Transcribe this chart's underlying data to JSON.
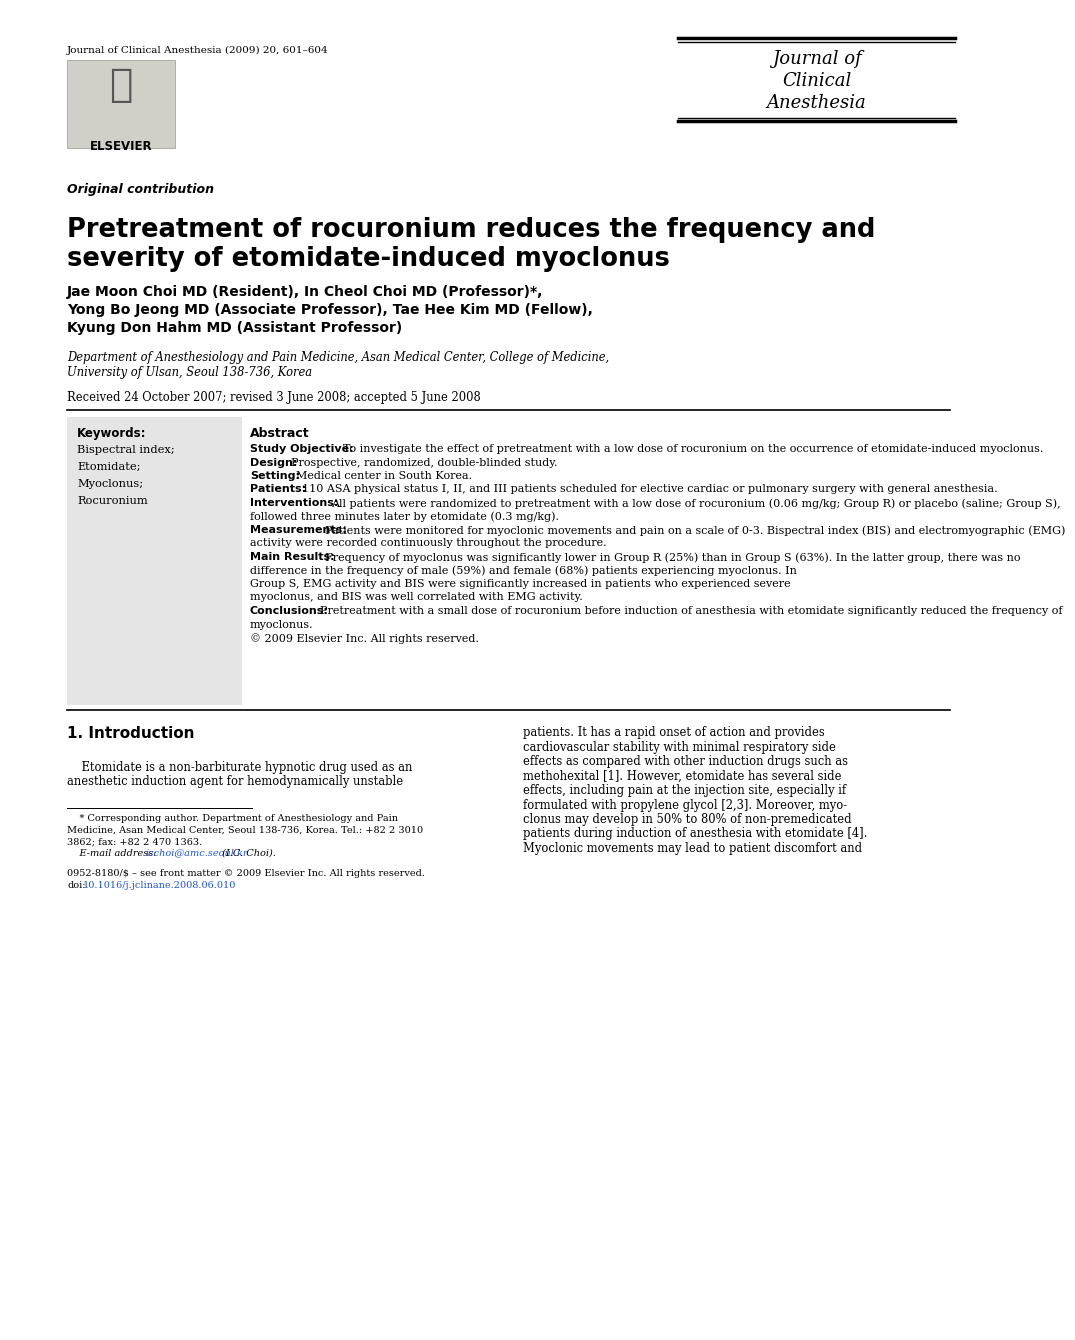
{
  "journal_info": "Journal of Clinical Anesthesia (2009) 20, 601–604",
  "journal_name_lines": [
    "Journal of",
    "Clinical",
    "Anesthesia"
  ],
  "section_label": "Original contribution",
  "title_line1": "Pretreatment of rocuronium reduces the frequency and",
  "title_line2": "severity of etomidate-induced myoclonus",
  "authors_line1": "Jae Moon Choi MD (Resident), In Cheol Choi MD (Professor)*,",
  "authors_line2": "Yong Bo Jeong MD (Associate Professor), Tae Hee Kim MD (Fellow),",
  "authors_line3": "Kyung Don Hahm MD (Assistant Professor)",
  "affil_line1": "Department of Anesthesiology and Pain Medicine, Asan Medical Center, College of Medicine,",
  "affil_line2": "University of Ulsan, Seoul 138-736, Korea",
  "received": "Received 24 October 2007; revised 3 June 2008; accepted 5 June 2008",
  "keywords_title": "Keywords:",
  "keywords": [
    "Bispectral index;",
    "Etomidate;",
    "Myoclonus;",
    "Rocuronium"
  ],
  "abstract_title": "Abstract",
  "abstract_paragraphs": [
    {
      "bold": "Study Objective:",
      "normal": " To investigate the effect of pretreatment with a low dose of rocuronium on the occurrence of etomidate-induced myoclonus."
    },
    {
      "bold": "Design:",
      "normal": " Prospective, randomized, double-blinded study."
    },
    {
      "bold": "Setting:",
      "normal": " Medical center in South Korea."
    },
    {
      "bold": "Patients:",
      "normal": " 110 ASA physical status I, II, and III patients scheduled for elective cardiac or pulmonary surgery with general anesthesia."
    },
    {
      "bold": "Interventions:",
      "normal": " All patients were randomized to pretreatment with a low dose of rocuronium (0.06 mg/kg; Group R) or placebo (saline; Group S), followed three minutes later by etomidate (0.3 mg/kg)."
    },
    {
      "bold": "Measurements:",
      "normal": " Patients were monitored for myoclonic movements and pain on a scale of 0-3. Bispectral index (BIS) and electromyographic (EMG) activity were recorded continuously throughout the procedure."
    },
    {
      "bold": "Main Results:",
      "normal": " Frequency of myoclonus was significantly lower in Group R (25%) than in Group S (63%). In the latter group, there was no difference in the frequency of male (59%) and female (68%) patients experiencing myoclonus. In Group S, EMG activity and BIS were significantly increased in patients who experienced severe myoclonus, and BIS was well correlated with EMG activity."
    },
    {
      "bold": "Conclusions:",
      "normal": " Pretreatment with a small dose of rocuronium before induction of anesthesia with etomidate significantly reduced the frequency of myoclonus."
    },
    {
      "bold": "",
      "normal": "© 2009 Elsevier Inc. All rights reserved."
    }
  ],
  "intro_heading": "1. Introduction",
  "intro_left_lines": [
    "    Etomidate is a non-barbiturate hypnotic drug used as an",
    "anesthetic induction agent for hemodynamically unstable"
  ],
  "intro_right_lines": [
    "patients. It has a rapid onset of action and provides",
    "cardiovascular stability with minimal respiratory side",
    "effects as compared with other induction drugs such as",
    "methohexital [1]. However, etomidate has several side",
    "effects, including pain at the injection site, especially if",
    "formulated with propylene glycol [2,3]. Moreover, myo-",
    "clonus may develop in 50% to 80% of non-premedicated",
    "patients during induction of anesthesia with etomidate [4].",
    "Myoclonic movements may lead to patient discomfort and"
  ],
  "footnote_lines": [
    "    * Corresponding author. Department of Anesthesiology and Pain",
    "Medicine, Asan Medical Center, Seoul 138-736, Korea. Tel.: +82 2 3010",
    "3862; fax: +82 2 470 1363."
  ],
  "footnote_email_prefix": "    E-mail address: ",
  "footnote_email_link": "icchoi@amc.seoul.kr",
  "footnote_email_suffix": " (I.C. Choi).",
  "copyright_line1": "0952-8180/$ – see front matter © 2009 Elsevier Inc. All rights reserved.",
  "copyright_doi_prefix": "doi:",
  "copyright_doi_link": "10.1016/j.jclinane.2008.06.010",
  "bg_color": "#ffffff",
  "text_color": "#000000",
  "keyword_bg": "#e8e8e8",
  "link_color": "#2255cc"
}
